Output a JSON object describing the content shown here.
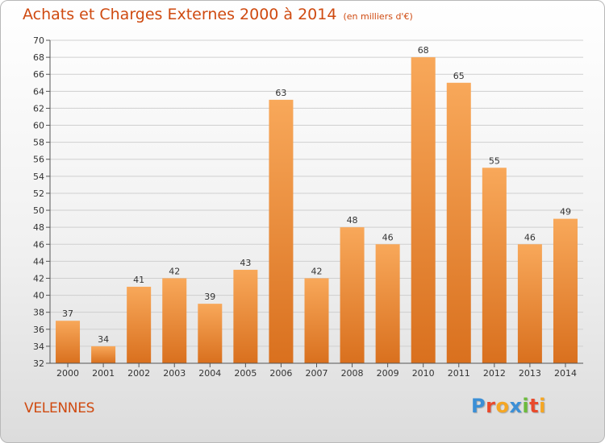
{
  "title": "Achats et Charges Externes 2000 à 2014",
  "unit_note": "(en milliers d'€)",
  "location": "VELENNES",
  "logo": {
    "letters": [
      {
        "char": "P",
        "color": "#3b8fd6"
      },
      {
        "char": "r",
        "color": "#e94a2c"
      },
      {
        "char": "o",
        "color": "#f5a623"
      },
      {
        "char": "x",
        "color": "#3b8fd6"
      },
      {
        "char": "i",
        "color": "#6cbb3c"
      },
      {
        "char": "t",
        "color": "#e94a2c"
      },
      {
        "char": "i",
        "color": "#f5a623"
      }
    ]
  },
  "colors": {
    "title": "#cf4a10",
    "bar_light": "#f8a85a",
    "bar_dark": "#d9701e",
    "grid": "#cfcfcf"
  },
  "chart_data": {
    "type": "bar",
    "title": "Achats et Charges Externes 2000 à 2014",
    "subtitle": "(en milliers d'€)",
    "categories": [
      "2000",
      "2001",
      "2002",
      "2003",
      "2004",
      "2005",
      "2006",
      "2007",
      "2008",
      "2009",
      "2010",
      "2011",
      "2012",
      "2013",
      "2014"
    ],
    "values": [
      37,
      34,
      41,
      42,
      39,
      43,
      63,
      42,
      48,
      46,
      68,
      65,
      55,
      46,
      49
    ],
    "ylim": [
      32,
      70
    ],
    "ytick_step": 2,
    "grid": true,
    "data_labels": true
  }
}
